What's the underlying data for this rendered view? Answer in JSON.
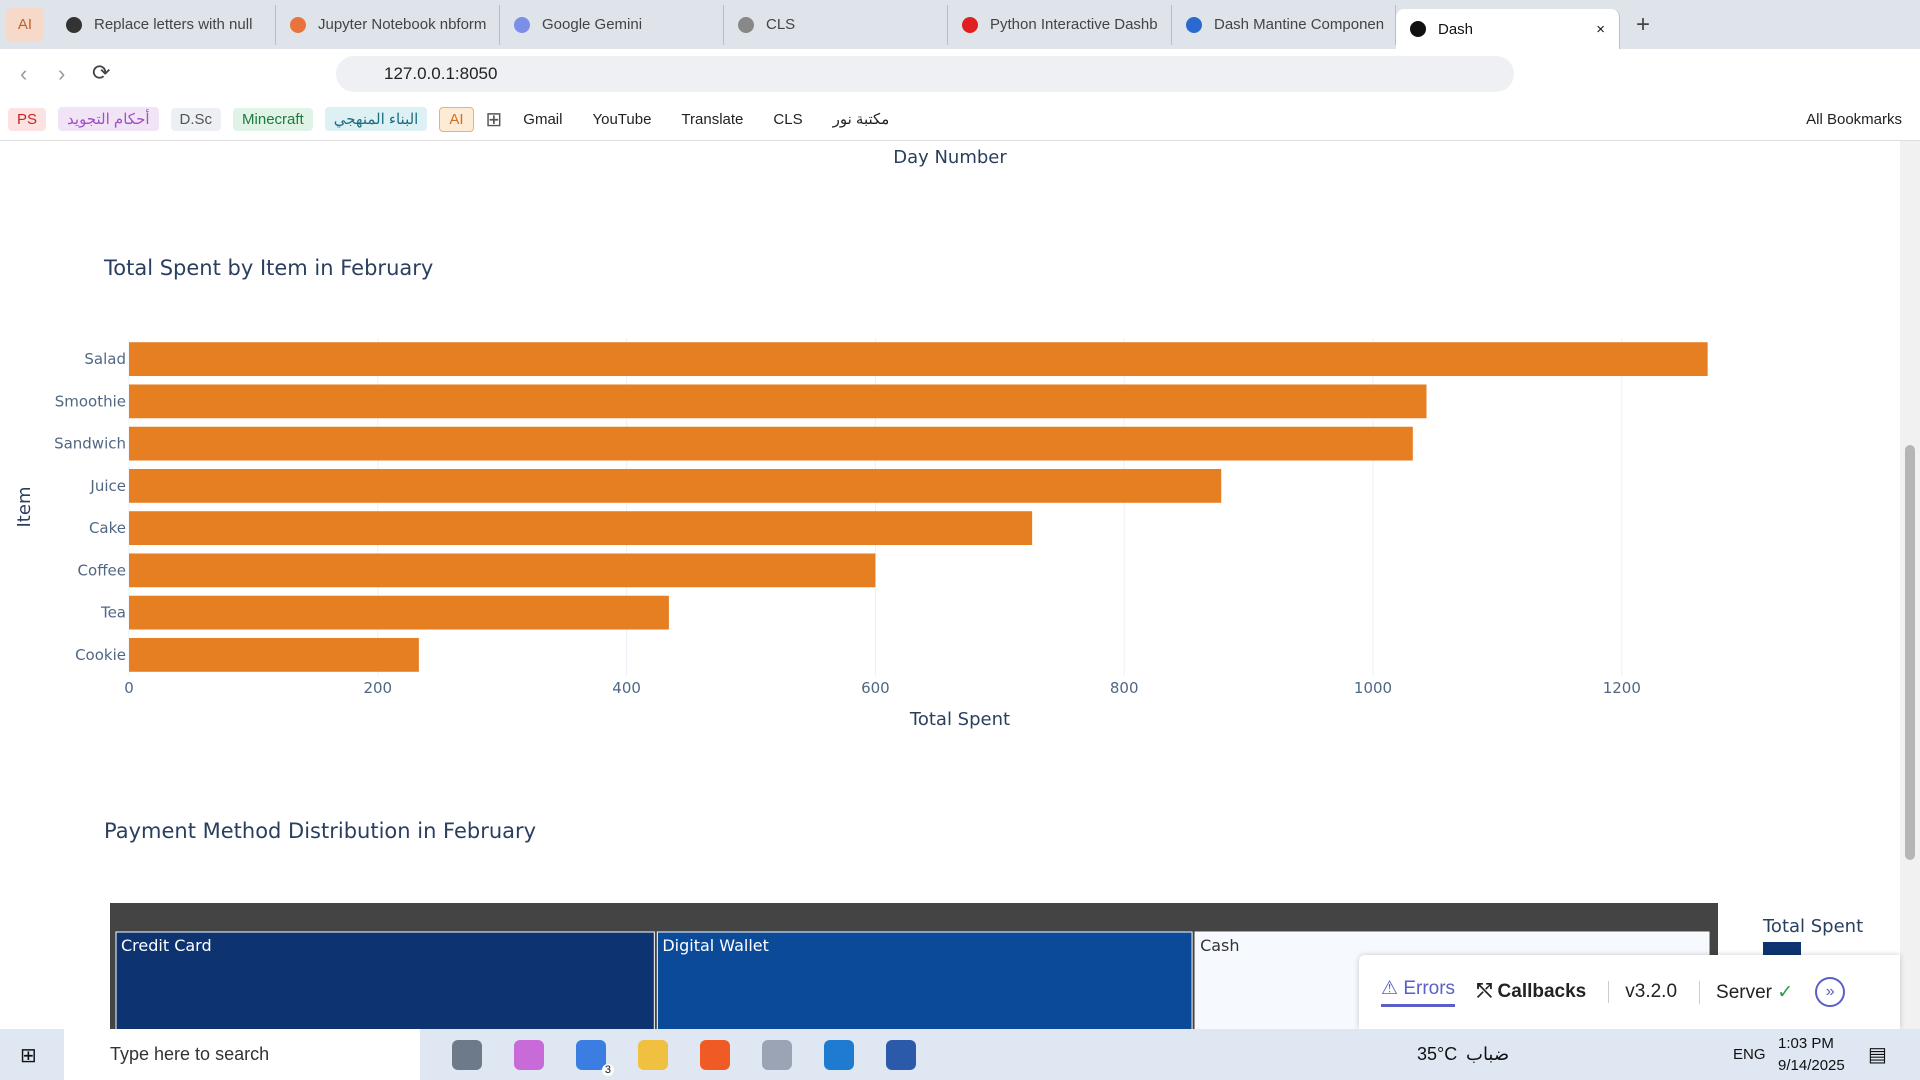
{
  "browser": {
    "pinned_tab": "AI",
    "tabs": [
      "Replace letters with null",
      "Jupyter Notebook nbform",
      "Google Gemini",
      "CLS",
      "Python Interactive Dashb",
      "Dash Mantine Componen",
      "Dash"
    ],
    "url": "127.0.0.1:8050",
    "bookmarks": [
      "PS",
      "أحكام التجويد",
      "D.Sc",
      "Minecraft",
      "البناء المنهجي",
      "AI",
      "Gmail",
      "YouTube",
      "Translate",
      "CLS",
      "مكتبة نور"
    ],
    "all_bookmarks": "All Bookmarks"
  },
  "previous_chart": {
    "x_axis_title": "Day Number"
  },
  "chart_data": [
    {
      "type": "hbar",
      "title": "Total Spent by Item in February",
      "x_axis_title": "Total Spent",
      "y_axis_title": "Item",
      "categories": [
        "Salad",
        "Smoothie",
        "Sandwich",
        "Juice",
        "Cake",
        "Coffee",
        "Tea",
        "Cookie"
      ],
      "values": [
        1269,
        1043,
        1032,
        878,
        726,
        600,
        434,
        233
      ],
      "color": "#e67e22",
      "xlim": [
        0,
        1336
      ],
      "xticks": [
        0,
        200,
        400,
        600,
        800,
        1000,
        1200
      ],
      "grid": true
    },
    {
      "type": "treemap",
      "title": "Payment Method Distribution in February",
      "colorbar_title": "Total Spent",
      "categories": [
        "Credit Card",
        "Digital Wallet",
        "Cash"
      ],
      "values": [
        2108,
        2094,
        2013
      ],
      "colors": [
        "#0d3470",
        "#0b4a98",
        "#f6f9fd"
      ],
      "label_colors": [
        "#ffffff",
        "#ffffff",
        "#333333"
      ]
    }
  ],
  "dash_debug": {
    "errors": "Errors",
    "callbacks": "Callbacks",
    "version": "v3.2.0",
    "server": "Server"
  },
  "taskbar": {
    "search": "Type here to search",
    "badge": "3",
    "temperature": "35°C",
    "weather": "ضباب",
    "language": "ENG",
    "time": "1:03 PM",
    "date": "9/14/2025"
  }
}
